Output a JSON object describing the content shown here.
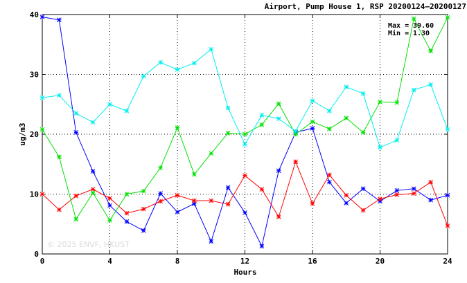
{
  "chart_data": {
    "type": "line",
    "title": "Airport, Pump House 1, RSP 20200124–20200127",
    "xlabel": "Hours",
    "ylabel": "ug/m3",
    "xlim": [
      0,
      24
    ],
    "ylim": [
      0,
      40
    ],
    "xticks": [
      0,
      4,
      8,
      12,
      16,
      20,
      24
    ],
    "yticks": [
      0,
      10,
      20,
      30,
      40
    ],
    "grid": true,
    "stats": {
      "max_label": "Max =",
      "max_value": "39.60",
      "min_label": "Min =",
      "min_value": "1.30"
    },
    "watermark": "© 2025 ENVF, HKUST",
    "x": [
      0,
      1,
      2,
      3,
      4,
      5,
      6,
      7,
      8,
      9,
      10,
      11,
      12,
      13,
      14,
      15,
      16,
      17,
      18,
      19,
      20,
      21,
      22,
      23,
      24
    ],
    "series": [
      {
        "color": "#0000ff",
        "values": [
          39.6,
          39.1,
          20.3,
          13.8,
          8.1,
          5.4,
          3.9,
          10.1,
          7.0,
          8.4,
          2.1,
          11.1,
          6.9,
          1.3,
          13.9,
          20.3,
          21.0,
          12.0,
          8.5,
          10.9,
          8.8,
          10.6,
          10.9,
          9.0,
          9.8
        ]
      },
      {
        "color": "#ff0000",
        "values": [
          10.0,
          7.4,
          9.7,
          10.8,
          9.3,
          6.8,
          7.5,
          8.8,
          9.8,
          8.9,
          8.9,
          8.3,
          13.1,
          10.8,
          6.2,
          15.4,
          8.4,
          13.2,
          9.8,
          7.3,
          9.2,
          9.9,
          10.1,
          12.0,
          4.7
        ]
      },
      {
        "color": "#00e000",
        "values": [
          20.8,
          16.2,
          5.8,
          10.2,
          5.6,
          10.0,
          10.5,
          14.4,
          21.1,
          13.3,
          16.8,
          20.2,
          20.0,
          21.6,
          25.1,
          20.0,
          22.1,
          20.9,
          22.7,
          20.3,
          25.4,
          25.3,
          39.3,
          33.9,
          39.5
        ]
      },
      {
        "color": "#00eeee",
        "values": [
          26.1,
          26.5,
          23.5,
          22.0,
          25.0,
          23.9,
          29.7,
          32.0,
          30.8,
          31.9,
          34.2,
          24.4,
          18.3,
          23.2,
          22.6,
          20.5,
          25.6,
          23.9,
          27.9,
          26.8,
          17.8,
          19.0,
          27.4,
          28.3,
          20.8
        ]
      }
    ]
  }
}
